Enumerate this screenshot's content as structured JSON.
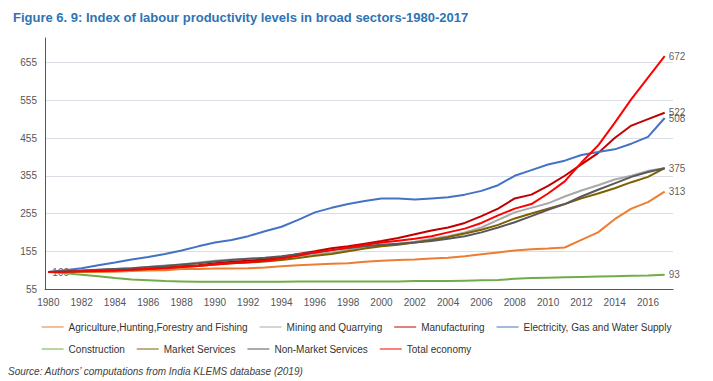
{
  "chart_data": {
    "type": "line",
    "title": "Figure 6. 9: Index of labour productivity levels in broad sectors-1980-2017",
    "source": "Source: Authors’ computations from India KLEMS database (2019)",
    "x": [
      1980,
      1981,
      1982,
      1983,
      1984,
      1985,
      1986,
      1987,
      1988,
      1989,
      1990,
      1991,
      1992,
      1993,
      1994,
      1995,
      1996,
      1997,
      1998,
      1999,
      2000,
      2001,
      2002,
      2003,
      2004,
      2005,
      2006,
      2007,
      2008,
      2009,
      2010,
      2011,
      2012,
      2013,
      2014,
      2015,
      2016,
      2017
    ],
    "series": [
      {
        "name": "Agriculture,Hunting,Forestry and Fishing",
        "color": "#ED7D31",
        "values": [
          100,
          100,
          100,
          100,
          101,
          103,
          104,
          105,
          108,
          108,
          109,
          109,
          110,
          112,
          115,
          118,
          120,
          122,
          123,
          127,
          130,
          132,
          133,
          136,
          138,
          142,
          147,
          152,
          157,
          160,
          162,
          165,
          185,
          205,
          240,
          268,
          285,
          313
        ]
      },
      {
        "name": "Mining and Quarrying",
        "color": "#A9A9A9",
        "values": [
          100,
          101,
          103,
          106,
          108,
          110,
          113,
          117,
          120,
          125,
          130,
          133,
          135,
          136,
          140,
          143,
          148,
          152,
          158,
          164,
          170,
          175,
          180,
          188,
          195,
          205,
          218,
          238,
          258,
          270,
          282,
          300,
          316,
          330,
          345,
          355,
          368,
          375
        ]
      },
      {
        "name": "Manufacturing",
        "color": "#C00000",
        "values": [
          100,
          101,
          103,
          105,
          107,
          108,
          109,
          112,
          115,
          118,
          123,
          127,
          130,
          133,
          140,
          148,
          155,
          163,
          168,
          175,
          182,
          190,
          200,
          210,
          218,
          230,
          248,
          268,
          295,
          305,
          328,
          355,
          385,
          415,
          455,
          488,
          505,
          522
        ]
      },
      {
        "name": "Electricity, Gas and Water Supply",
        "color": "#4472C4",
        "values": [
          100,
          105,
          110,
          118,
          125,
          133,
          140,
          148,
          157,
          168,
          178,
          185,
          195,
          208,
          220,
          238,
          258,
          270,
          280,
          288,
          295,
          295,
          292,
          295,
          298,
          305,
          315,
          330,
          355,
          370,
          385,
          395,
          410,
          418,
          425,
          440,
          458,
          508
        ]
      },
      {
        "name": "Construction",
        "color": "#70AD47",
        "values": [
          100,
          97,
          93,
          89,
          84,
          80,
          78,
          76,
          75,
          74,
          74,
          74,
          74,
          74,
          74,
          75,
          75,
          75,
          75,
          75,
          75,
          75,
          76,
          76,
          76,
          77,
          78,
          79,
          82,
          84,
          85,
          86,
          87,
          88,
          89,
          90,
          91,
          93
        ]
      },
      {
        "name": "Market Services",
        "color": "#7F6000",
        "values": [
          100,
          101,
          102,
          103,
          104,
          106,
          108,
          110,
          113,
          116,
          120,
          123,
          125,
          128,
          132,
          137,
          143,
          148,
          155,
          162,
          168,
          172,
          178,
          185,
          193,
          202,
          212,
          225,
          242,
          255,
          268,
          280,
          295,
          308,
          322,
          338,
          352,
          375
        ]
      },
      {
        "name": "Non-Market Services",
        "color": "#595959",
        "values": [
          100,
          102,
          104,
          106,
          108,
          110,
          113,
          116,
          120,
          123,
          128,
          132,
          135,
          138,
          142,
          147,
          152,
          158,
          163,
          168,
          172,
          175,
          178,
          182,
          188,
          195,
          205,
          218,
          232,
          248,
          265,
          280,
          300,
          318,
          335,
          352,
          365,
          375
        ]
      },
      {
        "name": "Total economy",
        "color": "#FF0000",
        "values": [
          100,
          101,
          102,
          103,
          104,
          106,
          108,
          110,
          113,
          116,
          120,
          123,
          126,
          130,
          136,
          143,
          152,
          158,
          165,
          172,
          178,
          183,
          188,
          195,
          205,
          215,
          230,
          250,
          268,
          280,
          308,
          340,
          390,
          435,
          495,
          558,
          615,
          672
        ]
      }
    ],
    "annotations": [
      {
        "text": "672",
        "x": 2017,
        "y": 672
      },
      {
        "text": "522",
        "x": 2017,
        "y": 522
      },
      {
        "text": "508",
        "x": 2017,
        "y": 508
      },
      {
        "text": "375",
        "x": 2017,
        "y": 375
      },
      {
        "text": "313",
        "x": 2017,
        "y": 313
      },
      {
        "text": "93",
        "x": 2017,
        "y": 93
      },
      {
        "text": "100",
        "x": 1980,
        "y": 100
      }
    ],
    "xlim": [
      1979.8,
      2017.5
    ],
    "xticks": [
      1980,
      1982,
      1984,
      1986,
      1988,
      1990,
      1992,
      1994,
      1996,
      1998,
      2000,
      2002,
      2004,
      2006,
      2008,
      2010,
      2012,
      2014,
      2016
    ],
    "ylim": [
      55,
      720
    ],
    "yticks": [
      55,
      155,
      255,
      355,
      455,
      555,
      655
    ],
    "grid": true,
    "legend": "bottom"
  }
}
